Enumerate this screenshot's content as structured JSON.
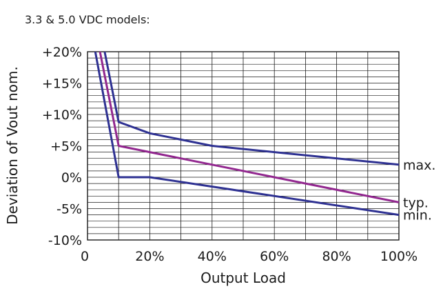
{
  "chart_data": {
    "type": "line",
    "subtitle": "3.3 & 5.0 VDC models:",
    "xlabel": "Output Load",
    "ylabel": "Deviation of Vout nom.",
    "xlim": [
      0,
      100
    ],
    "ylim": [
      -10,
      20
    ],
    "x_ticks": [
      0,
      20,
      40,
      60,
      80,
      100
    ],
    "x_tick_labels": [
      "0",
      "20%",
      "40%",
      "60%",
      "80%",
      "100%"
    ],
    "y_ticks": [
      -10,
      -5,
      0,
      5,
      10,
      15,
      20
    ],
    "y_tick_labels": [
      "-10%",
      "-5%",
      "0%",
      "+5%",
      "+10%",
      "+15%",
      "+20%"
    ],
    "grid": true,
    "series": [
      {
        "name": "max.",
        "color": "#2e3192",
        "x": [
          5.5,
          10,
          20,
          40,
          100
        ],
        "y": [
          20,
          8.8,
          7,
          5,
          2
        ]
      },
      {
        "name": "typ.",
        "color": "#92278f",
        "x": [
          4,
          10,
          20,
          40,
          100
        ],
        "y": [
          20,
          5,
          4,
          2,
          -4
        ]
      },
      {
        "name": "min.",
        "color": "#2e3192",
        "x": [
          2.5,
          10,
          20,
          40,
          100
        ],
        "y": [
          20,
          0,
          0,
          -1.5,
          -6
        ]
      }
    ]
  }
}
